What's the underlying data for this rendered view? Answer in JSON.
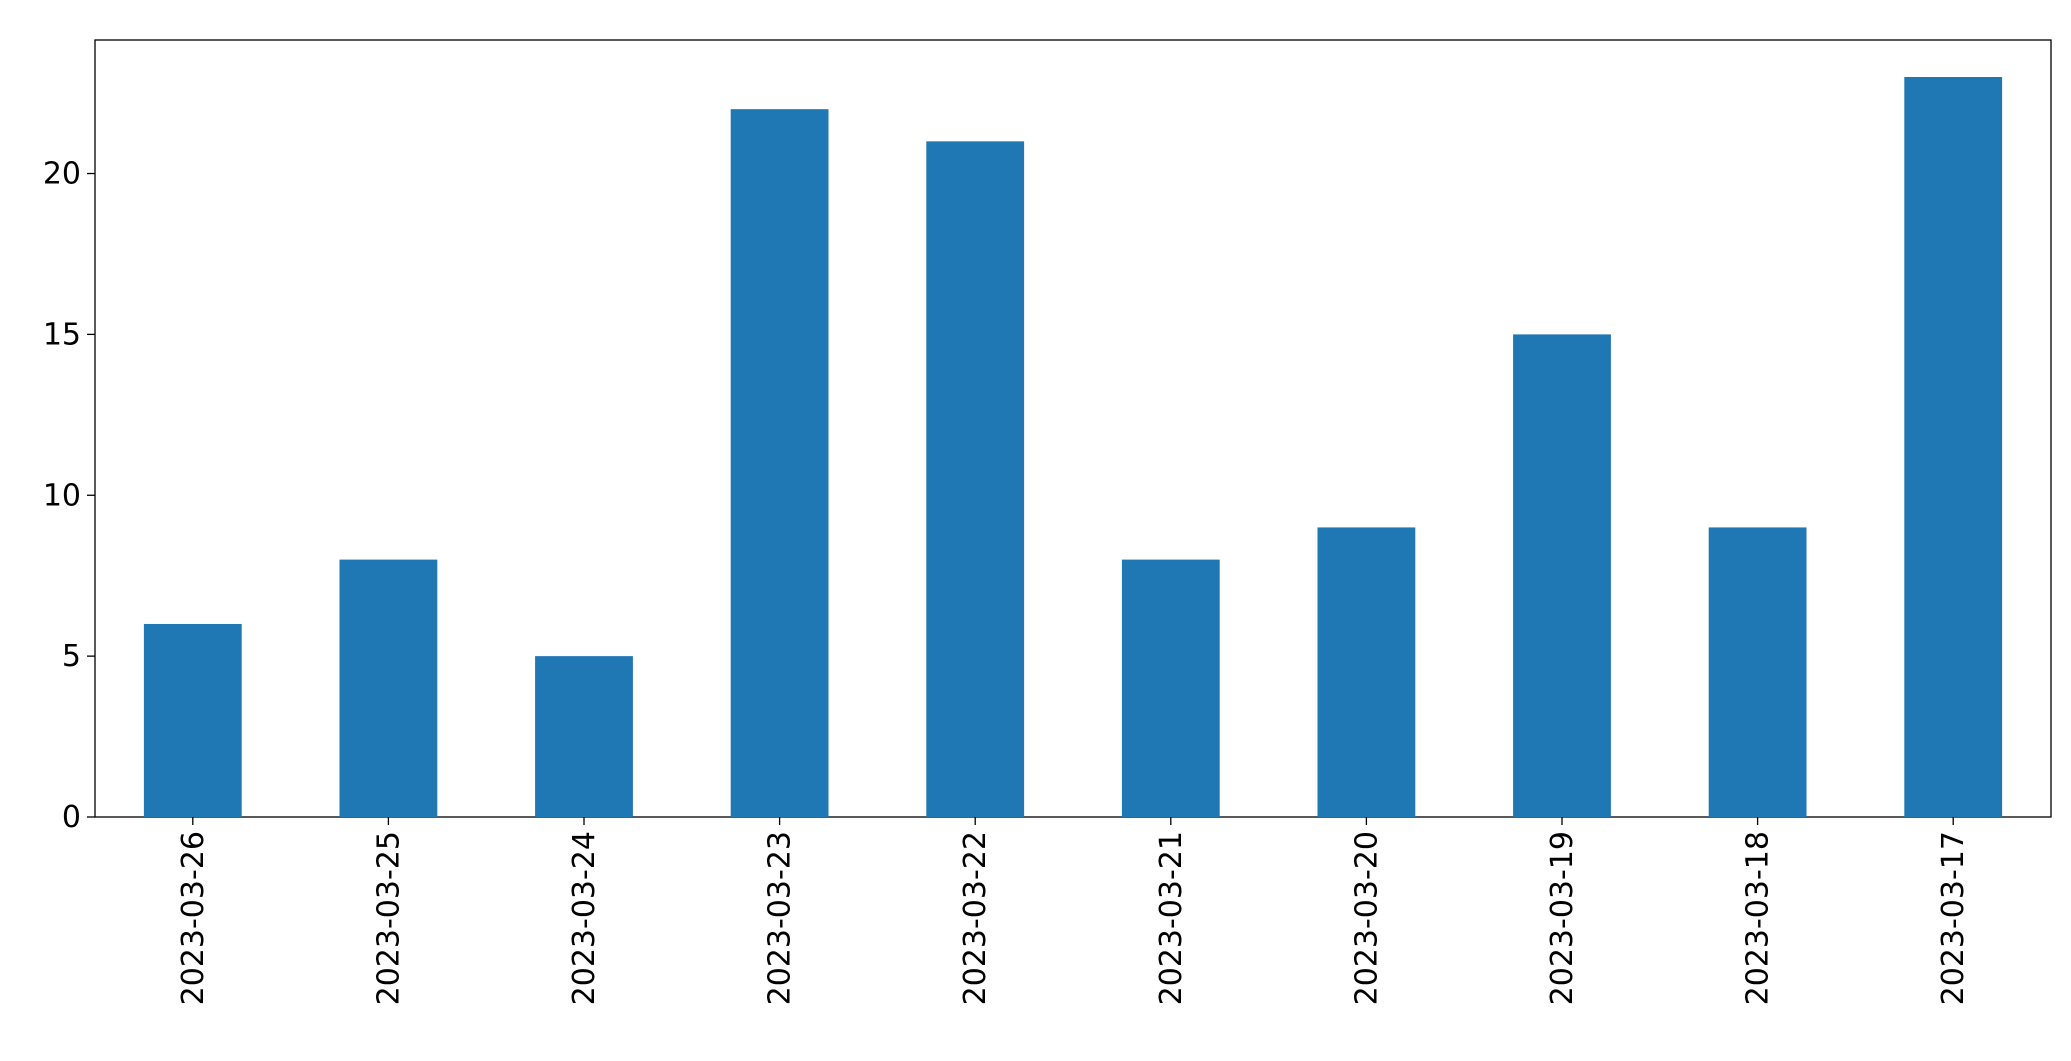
{
  "chart_data": {
    "type": "bar",
    "categories": [
      "2023-03-26",
      "2023-03-25",
      "2023-03-24",
      "2023-03-23",
      "2023-03-22",
      "2023-03-21",
      "2023-03-20",
      "2023-03-19",
      "2023-03-18",
      "2023-03-17"
    ],
    "values": [
      6,
      8,
      5,
      22,
      21,
      8,
      9,
      15,
      9,
      23
    ],
    "color": "#1f77b4",
    "ylim": [
      0,
      24.15
    ],
    "yticks": [
      0,
      5,
      10,
      15,
      20
    ],
    "grid": false
  }
}
